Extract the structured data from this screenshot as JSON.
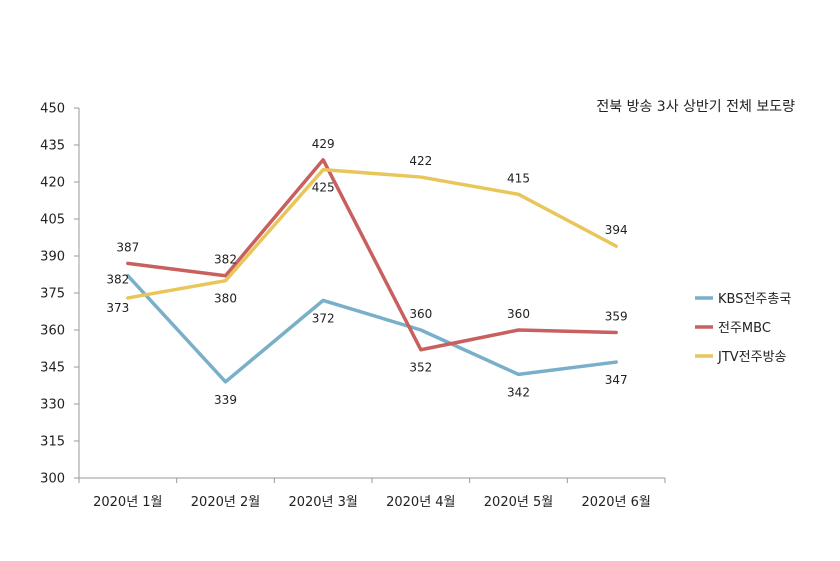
{
  "chart_data": {
    "type": "line",
    "title": "전북 방송 3사 상반기 전체 보도량",
    "categories": [
      "2020년 1월",
      "2020년 2월",
      "2020년 3월",
      "2020년 4월",
      "2020년 5월",
      "2020년 6월"
    ],
    "ylim": [
      300,
      450
    ],
    "yticks": [
      300,
      315,
      330,
      345,
      360,
      375,
      390,
      405,
      420,
      435,
      450
    ],
    "xlabel": "",
    "ylabel": "",
    "grid": false,
    "legend_position": "right",
    "series": [
      {
        "name": "KBS전주총국",
        "color": "#7AAFC9",
        "values": [
          382,
          339,
          372,
          360,
          342,
          347
        ]
      },
      {
        "name": "전주MBC",
        "color": "#C8605F",
        "values": [
          387,
          382,
          429,
          352,
          360,
          359
        ]
      },
      {
        "name": "JTV전주방송",
        "color": "#E8C65A",
        "values": [
          373,
          380,
          425,
          422,
          415,
          394
        ]
      }
    ]
  }
}
